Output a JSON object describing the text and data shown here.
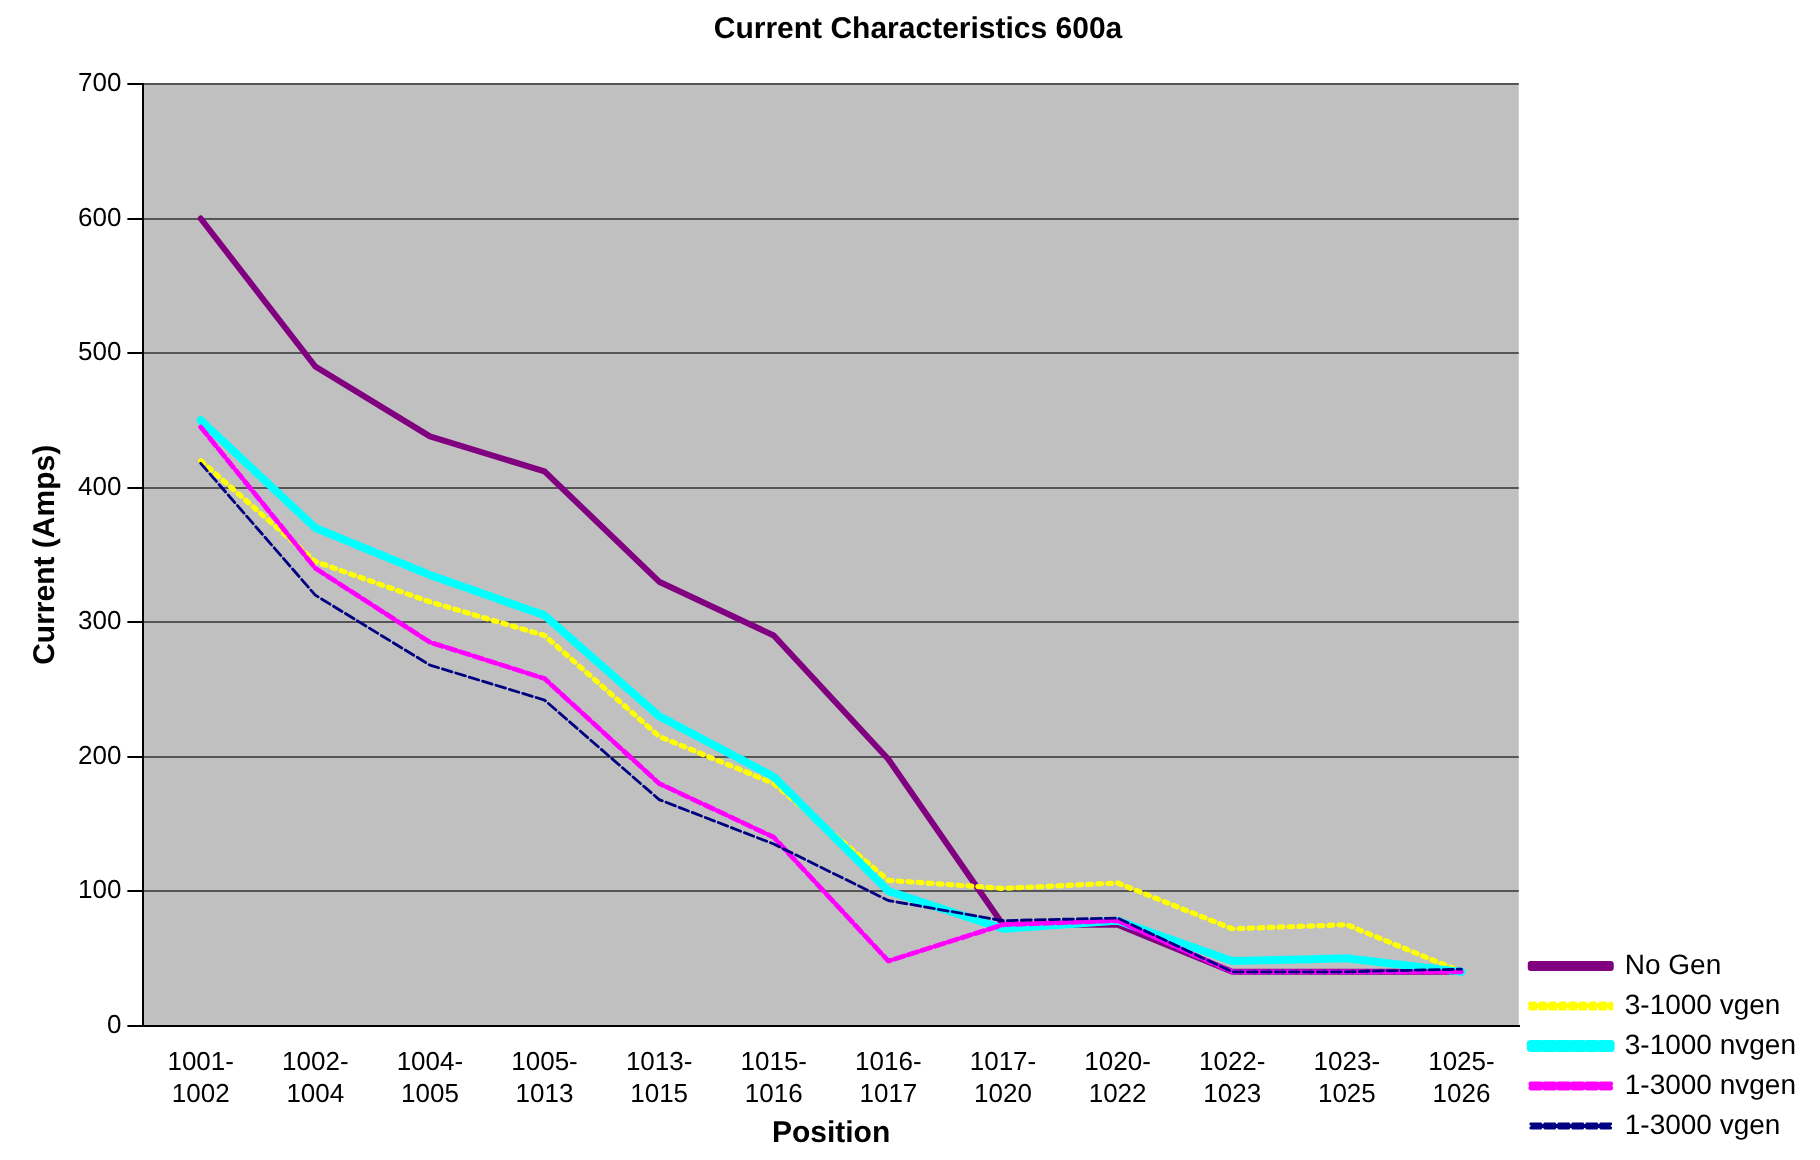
{
  "chart_data": {
    "type": "line",
    "title": "Current Characteristics 600a",
    "xlabel": "Position",
    "ylabel": "Current (Amps)",
    "categories": [
      "1001-1002",
      "1002-1004",
      "1004-1005",
      "1005-1013",
      "1013-1015",
      "1015-1016",
      "1016-1017",
      "1017-1020",
      "1020-1022",
      "1022-1023",
      "1023-1025",
      "1025-1026"
    ],
    "series": [
      {
        "name": "No Gen",
        "color": "#800080",
        "line_style": "solid",
        "values": [
          600,
          490,
          438,
          412,
          330,
          290,
          198,
          75,
          75,
          40,
          40,
          40
        ]
      },
      {
        "name": "3-1000 vgen",
        "color": "#ffff00",
        "line_style": "dotted",
        "values": [
          420,
          345,
          315,
          290,
          215,
          180,
          108,
          102,
          106,
          72,
          75,
          40
        ]
      },
      {
        "name": "3-1000 nvgen",
        "color": "#00ffff",
        "line_style": "dashed",
        "values": [
          450,
          370,
          335,
          305,
          230,
          185,
          100,
          72,
          78,
          48,
          50,
          40
        ]
      },
      {
        "name": "1-3000 nvgen",
        "color": "#ff00ff",
        "line_style": "dashed",
        "values": [
          445,
          340,
          285,
          258,
          180,
          140,
          48,
          75,
          78,
          40,
          40,
          40
        ]
      },
      {
        "name": "1-3000 vgen",
        "color": "#000080",
        "line_style": "dashed",
        "values": [
          418,
          320,
          268,
          242,
          168,
          135,
          93,
          78,
          80,
          40,
          40,
          42
        ]
      }
    ],
    "ylim": [
      0,
      700
    ],
    "yticks": [
      0,
      100,
      200,
      300,
      400,
      500,
      600,
      700
    ],
    "grid": "y",
    "legend": "right",
    "marker": "none"
  }
}
